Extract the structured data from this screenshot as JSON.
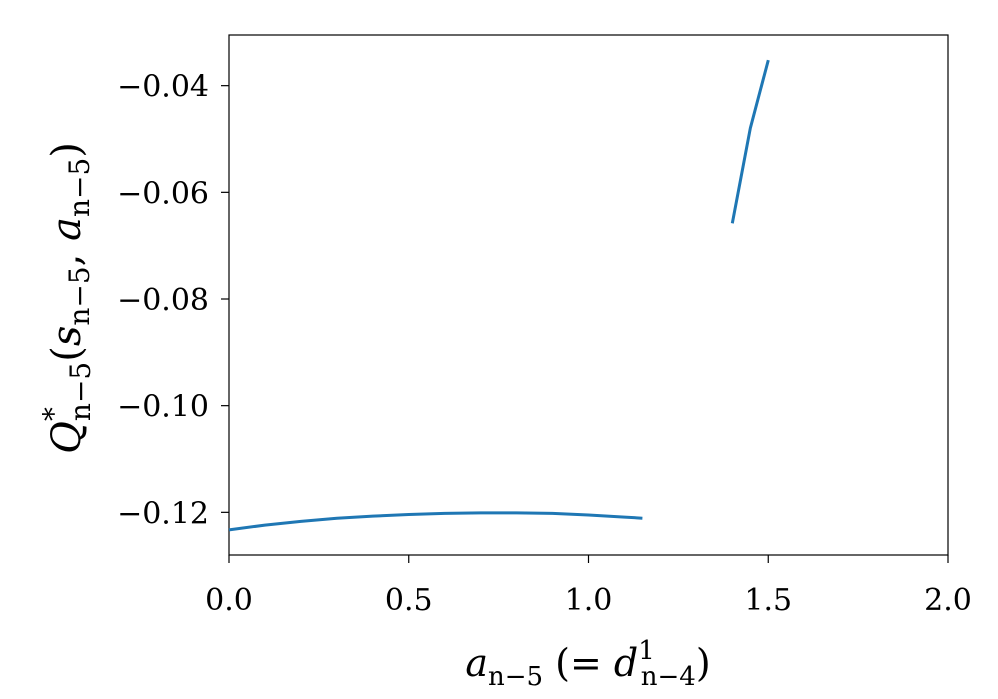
{
  "chart_data": {
    "type": "line",
    "xlim": [
      0.0,
      2.0
    ],
    "ylim": [
      -0.128,
      -0.0305
    ],
    "xticks": [
      0.0,
      0.5,
      1.0,
      1.5,
      2.0
    ],
    "xtick_labels": [
      "0.0",
      "0.5",
      "1.0",
      "1.5",
      "2.0"
    ],
    "yticks": [
      -0.04,
      -0.06,
      -0.08,
      -0.1,
      -0.12
    ],
    "ytick_labels": [
      "−0.04",
      "−0.06",
      "−0.08",
      "−0.10",
      "−0.12"
    ],
    "xlabel": {
      "base": "a",
      "sub": "n−5",
      "mid": " (= ",
      "d": "d",
      "d_sup": "1",
      "d_sub": "n−4",
      "close": ")"
    },
    "ylabel": {
      "base": "Q",
      "sup": "*",
      "sub": "n−5",
      "open": "(",
      "s": "s",
      "s_sub": "n−5",
      "comma": ", ",
      "a": "a",
      "a_sub": "n−5",
      "close": ")"
    },
    "grid": false,
    "series": [
      {
        "color": "#1f77b4",
        "segments": [
          {
            "x": [
              0.0,
              0.1,
              0.2,
              0.3,
              0.4,
              0.5,
              0.6,
              0.7,
              0.75,
              0.8,
              0.9,
              1.0,
              1.1,
              1.15
            ],
            "y": [
              -0.1233,
              -0.1224,
              -0.1217,
              -0.1211,
              -0.1207,
              -0.1204,
              -0.1202,
              -0.1201,
              -0.1201,
              -0.1201,
              -0.1202,
              -0.1205,
              -0.1209,
              -0.1211
            ]
          },
          {
            "x": [
              1.4,
              1.45,
              1.5
            ],
            "y": [
              -0.0658,
              -0.048,
              -0.0352
            ]
          }
        ]
      }
    ]
  }
}
